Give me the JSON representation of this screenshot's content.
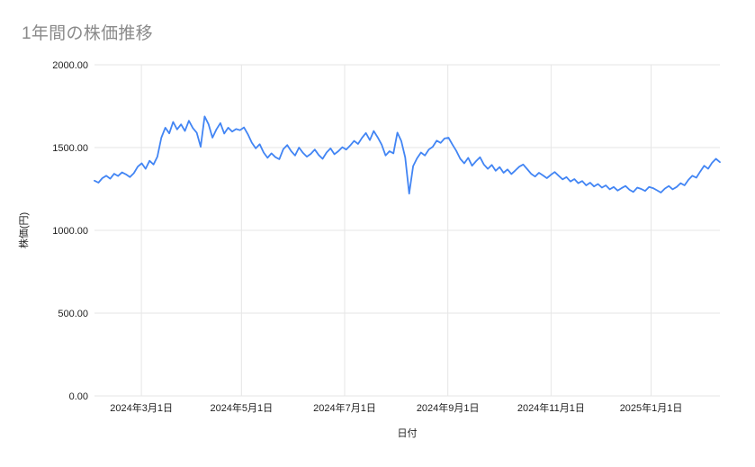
{
  "page": {
    "title": "1年間の株価推移"
  },
  "colors": {
    "background": "#ffffff",
    "title_text": "#8a8a8a",
    "grid": "#e6e6e6",
    "axis_text": "#1f1f1f",
    "line": "#4285f4"
  },
  "chart_data": {
    "type": "line",
    "title": "1年間の株価推移",
    "xlabel": "日付",
    "ylabel": "株価(円)",
    "ylim": [
      0,
      2000
    ],
    "y_ticks": [
      0,
      500,
      1000,
      1500,
      2000
    ],
    "y_tick_labels": [
      "0.00",
      "500.00",
      "1000.00",
      "1500.00",
      "2000.00"
    ],
    "x_tick_labels": [
      "2024年3月1日",
      "2024年5月1日",
      "2024年7月1日",
      "2024年9月1日",
      "2024年11月1日",
      "2025年1月1日"
    ],
    "x_tick_positions": [
      0.075,
      0.235,
      0.4,
      0.565,
      0.73,
      0.89
    ],
    "grid": true,
    "legend": "none",
    "line_color": "#4285f4",
    "series": [
      {
        "name": "株価",
        "values": [
          1300,
          1288,
          1315,
          1330,
          1312,
          1342,
          1328,
          1350,
          1338,
          1322,
          1345,
          1385,
          1405,
          1372,
          1420,
          1398,
          1445,
          1560,
          1620,
          1586,
          1655,
          1610,
          1640,
          1600,
          1662,
          1618,
          1590,
          1505,
          1688,
          1640,
          1560,
          1610,
          1648,
          1585,
          1620,
          1596,
          1612,
          1605,
          1622,
          1580,
          1530,
          1495,
          1520,
          1470,
          1438,
          1465,
          1442,
          1430,
          1490,
          1515,
          1478,
          1452,
          1500,
          1468,
          1445,
          1462,
          1488,
          1455,
          1432,
          1470,
          1495,
          1460,
          1478,
          1502,
          1488,
          1512,
          1540,
          1522,
          1558,
          1588,
          1545,
          1600,
          1562,
          1518,
          1452,
          1478,
          1465,
          1590,
          1540,
          1440,
          1222,
          1388,
          1435,
          1470,
          1452,
          1488,
          1505,
          1542,
          1528,
          1555,
          1560,
          1518,
          1480,
          1432,
          1405,
          1438,
          1390,
          1418,
          1442,
          1398,
          1372,
          1395,
          1360,
          1382,
          1348,
          1368,
          1340,
          1362,
          1385,
          1398,
          1370,
          1342,
          1325,
          1348,
          1332,
          1315,
          1335,
          1352,
          1330,
          1308,
          1322,
          1295,
          1310,
          1285,
          1298,
          1272,
          1288,
          1265,
          1280,
          1258,
          1272,
          1248,
          1262,
          1240,
          1255,
          1268,
          1245,
          1232,
          1258,
          1250,
          1238,
          1262,
          1255,
          1242,
          1228,
          1252,
          1268,
          1248,
          1262,
          1285,
          1272,
          1305,
          1330,
          1318,
          1355,
          1390,
          1372,
          1408,
          1432,
          1412
        ]
      }
    ]
  }
}
